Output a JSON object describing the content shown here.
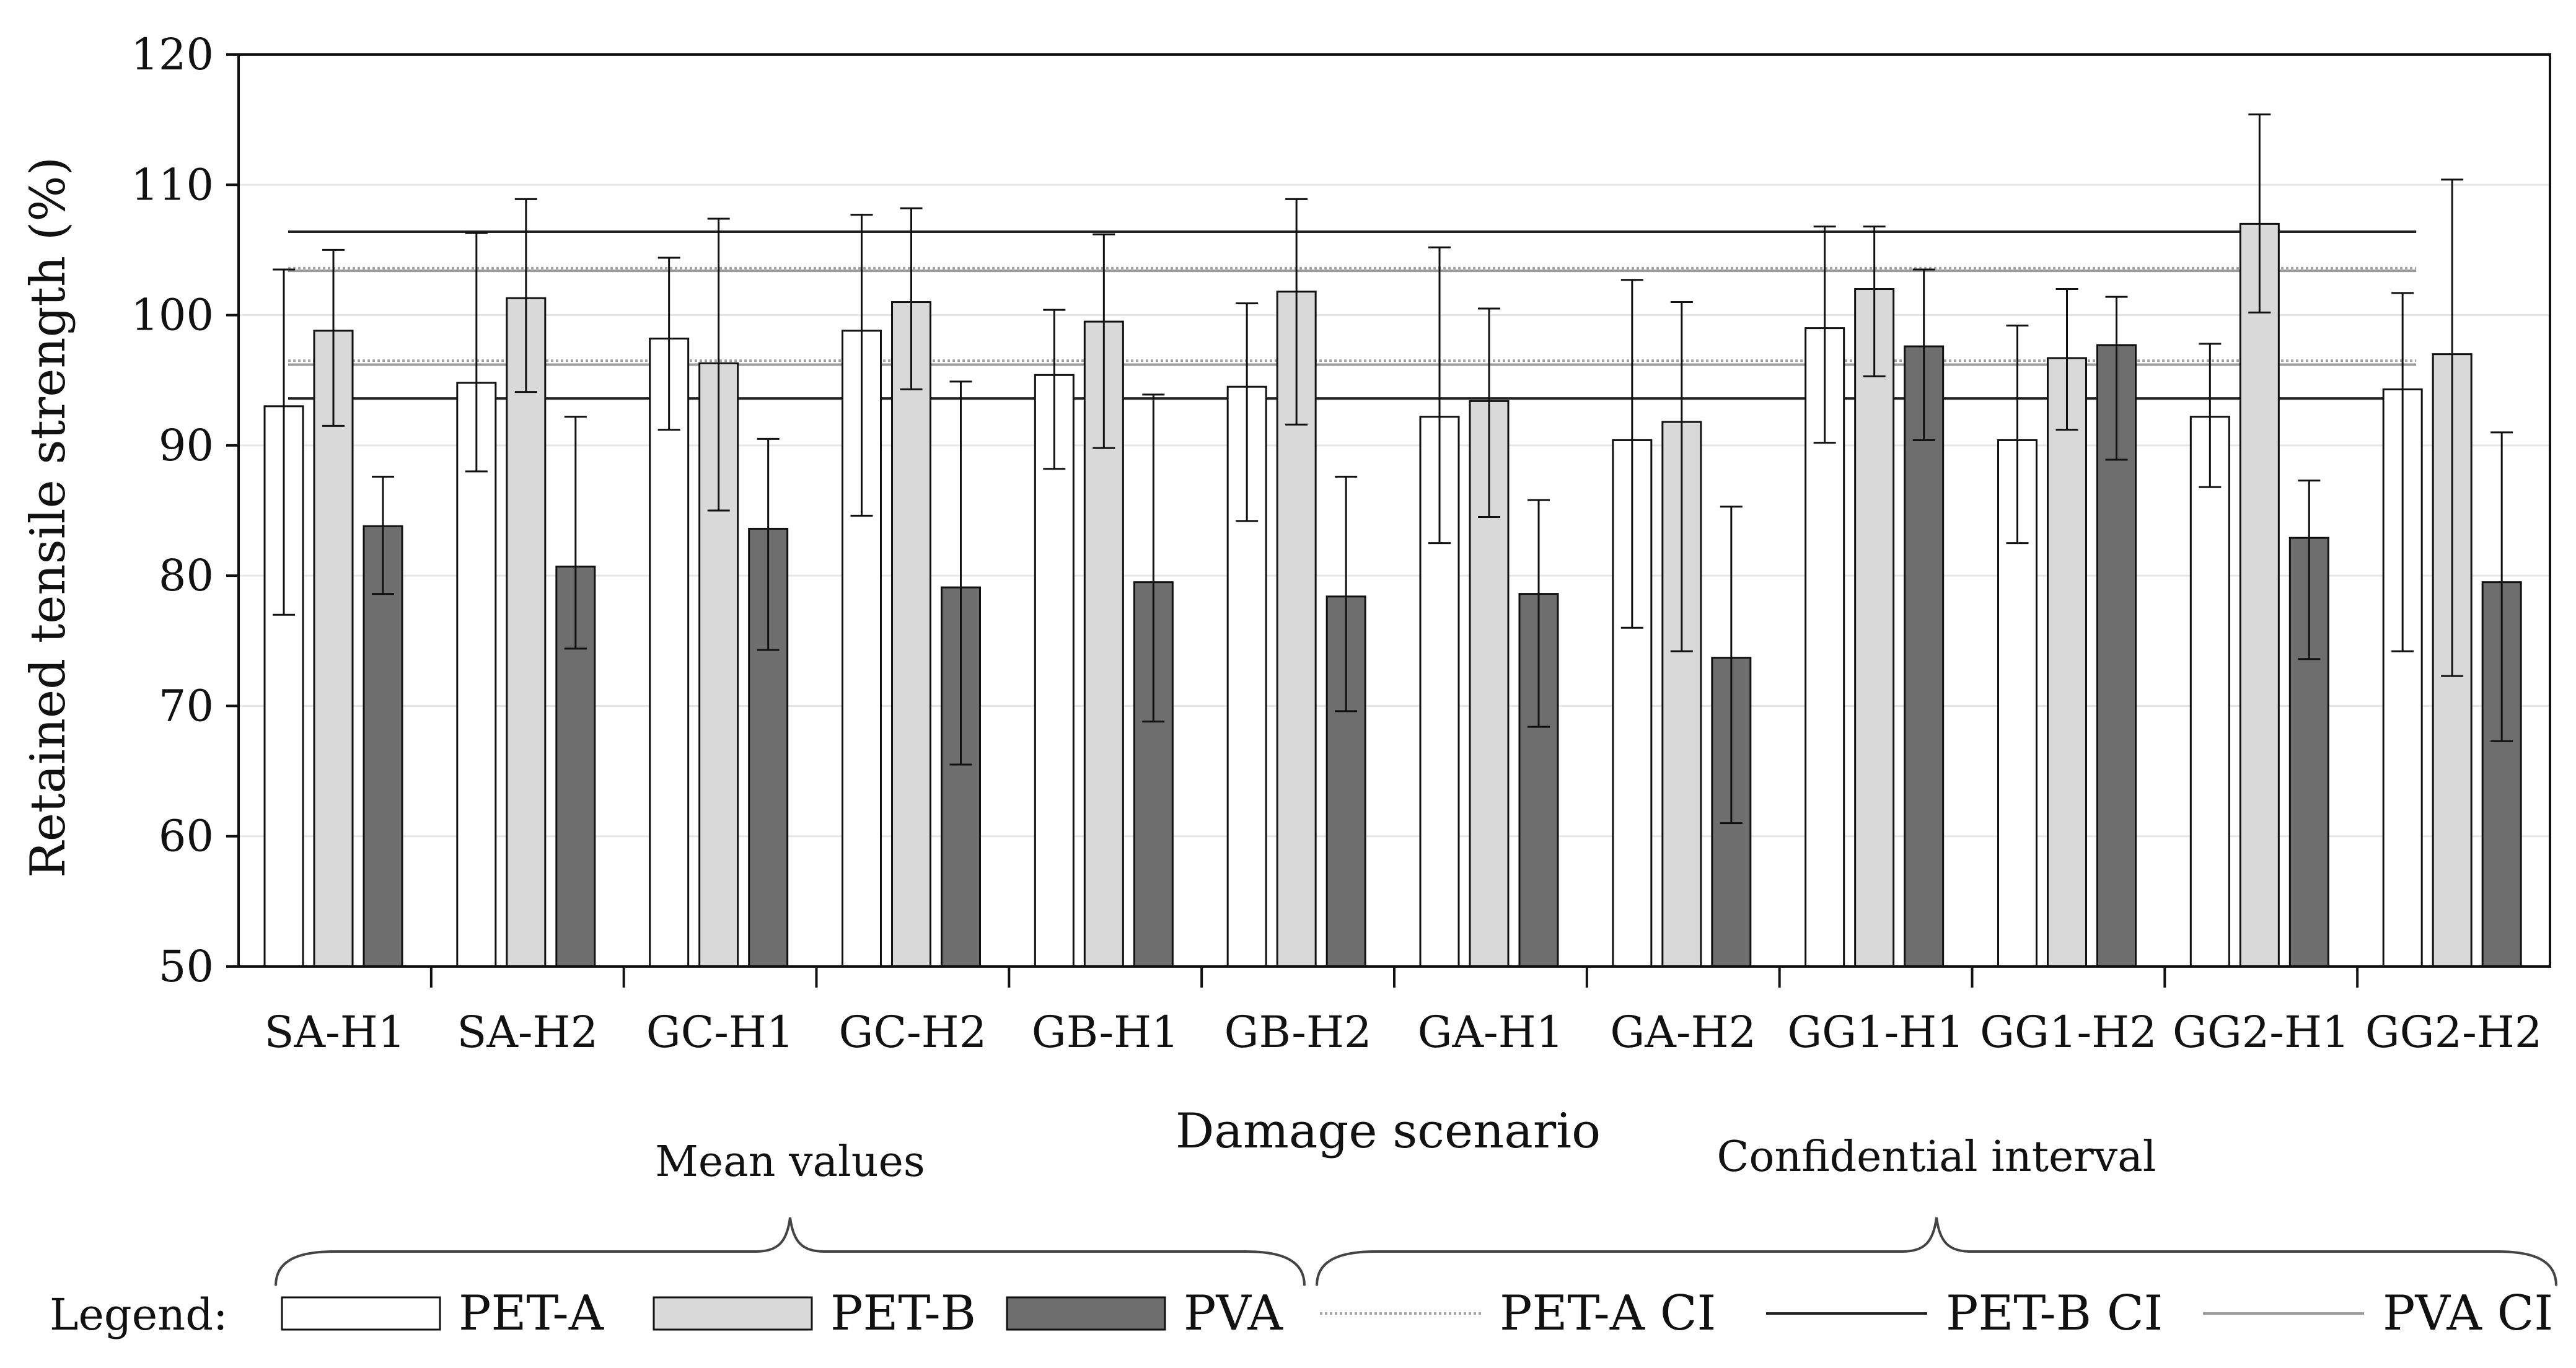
{
  "chart_data": {
    "type": "bar",
    "title": "",
    "xlabel": "Damage scenario",
    "ylabel": "Retained tensile strength (%)",
    "ylim": [
      50,
      120
    ],
    "yticks": [
      50,
      60,
      70,
      80,
      90,
      100,
      110,
      120
    ],
    "grid": true,
    "categories": [
      "SA-H1",
      "SA-H2",
      "GC-H1",
      "GC-H2",
      "GB-H1",
      "GB-H2",
      "GA-H1",
      "GA-H2",
      "GG1-H1",
      "GG1-H2",
      "GG2-H1",
      "GG2-H2"
    ],
    "series": [
      {
        "name": "PET-A",
        "color": "#ffffff",
        "values": [
          93.0,
          94.8,
          98.2,
          98.8,
          95.4,
          94.5,
          92.2,
          90.4,
          99.0,
          90.4,
          92.2,
          94.3
        ],
        "err_low": [
          77.0,
          88.0,
          91.2,
          84.6,
          88.2,
          84.2,
          82.5,
          76.0,
          90.2,
          82.5,
          86.8,
          74.2
        ],
        "err_high": [
          103.5,
          106.3,
          104.4,
          107.7,
          100.4,
          100.9,
          105.2,
          102.7,
          106.8,
          99.2,
          97.8,
          101.7
        ]
      },
      {
        "name": "PET-B",
        "color": "#d9d9d9",
        "values": [
          98.8,
          101.3,
          96.3,
          101.0,
          99.5,
          101.8,
          93.4,
          91.8,
          102.0,
          96.7,
          107.0,
          97.0
        ],
        "err_low": [
          91.5,
          94.1,
          85.0,
          94.3,
          89.8,
          91.6,
          84.5,
          74.2,
          95.3,
          91.2,
          100.2,
          72.3
        ],
        "err_high": [
          105.0,
          108.9,
          107.4,
          108.2,
          106.2,
          108.9,
          100.5,
          101.0,
          106.8,
          102.0,
          115.4,
          110.4
        ]
      },
      {
        "name": "PVA",
        "color": "#6e6e6e",
        "values": [
          83.8,
          80.7,
          83.6,
          79.1,
          79.5,
          78.4,
          78.6,
          73.7,
          97.6,
          97.7,
          82.9,
          79.5
        ],
        "err_low": [
          78.6,
          74.4,
          74.3,
          65.5,
          68.8,
          69.6,
          68.4,
          61.0,
          90.4,
          88.9,
          73.6,
          67.3
        ],
        "err_high": [
          87.6,
          92.2,
          90.5,
          94.9,
          93.9,
          87.6,
          85.8,
          85.3,
          103.5,
          101.4,
          87.3,
          91.0
        ]
      }
    ],
    "confidence_intervals": [
      {
        "name": "PET-A CI",
        "style": "dotted",
        "color": "#a6a6a6",
        "lower": 96.5,
        "upper": 103.6
      },
      {
        "name": "PET-B CI",
        "style": "solid",
        "color": "#222222",
        "lower": 93.6,
        "upper": 106.4
      },
      {
        "name": "PVA CI",
        "style": "solid",
        "color": "#9a9a9a",
        "lower": 96.2,
        "upper": 103.4
      }
    ],
    "annotations": {
      "mean_values": "Mean values",
      "confidential_interval": "Confidential interval"
    },
    "legend": {
      "title": "Legend:",
      "position": "bottom"
    }
  }
}
